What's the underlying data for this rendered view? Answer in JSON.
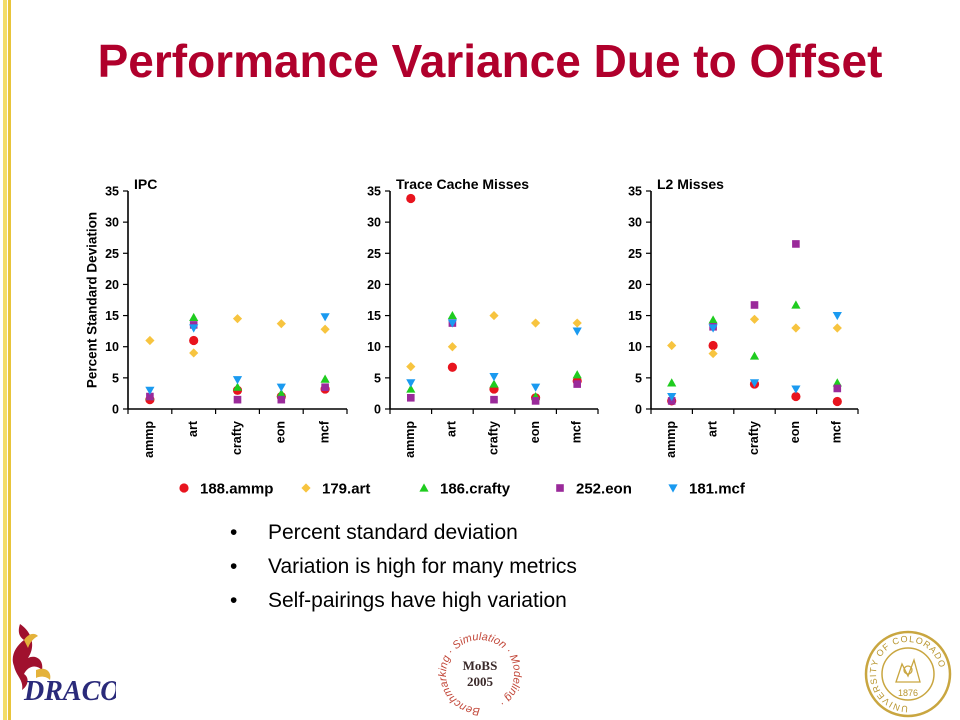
{
  "slide": {
    "title": "Performance Variance Due to Offset",
    "bullets": [
      "Percent standard deviation",
      "Variation is high for many metrics",
      "Self-pairings have high variation"
    ]
  },
  "logos": {
    "draco": "DRACO",
    "mobs_line1": "MoBS",
    "mobs_line2": "2005",
    "mobs_ring": "Benchmarking · Simulation · Modeling ·",
    "cu_ring": "UNIVERSITY OF COLORADO",
    "cu_year": "1876"
  },
  "colors": {
    "title": "#b0002c",
    "188.ammp": "#e8141e",
    "179.art": "#f7c43f",
    "186.crafty": "#1fcc1f",
    "252.eon": "#9a2a9a",
    "181.mcf": "#1a9af0"
  },
  "chart_data": [
    {
      "type": "scatter",
      "title": "IPC",
      "ylabel": "Percent Standard Deviation",
      "categories": [
        "ammp",
        "art",
        "crafty",
        "eon",
        "mcf"
      ],
      "ylim": [
        0,
        35
      ],
      "yticks": [
        0,
        5,
        10,
        15,
        20,
        25,
        30,
        35
      ],
      "series": [
        {
          "name": "188.ammp",
          "marker": "circle",
          "values": [
            1.5,
            11,
            3,
            2,
            3.2
          ]
        },
        {
          "name": "179.art",
          "marker": "diamond",
          "values": [
            11,
            9,
            14.5,
            13.7,
            12.8
          ]
        },
        {
          "name": "186.crafty",
          "marker": "triangle-up",
          "values": [
            2,
            14.7,
            3.5,
            2.5,
            4.8
          ]
        },
        {
          "name": "252.eon",
          "marker": "square",
          "values": [
            2,
            13.5,
            1.5,
            1.5,
            3.5
          ]
        },
        {
          "name": "181.mcf",
          "marker": "triangle-down",
          "values": [
            3,
            13,
            4.7,
            3.5,
            14.8
          ]
        }
      ]
    },
    {
      "type": "scatter",
      "title": "Trace Cache Misses",
      "categories": [
        "ammp",
        "art",
        "crafty",
        "eon",
        "mcf"
      ],
      "ylim": [
        0,
        35
      ],
      "yticks": [
        0,
        5,
        10,
        15,
        20,
        25,
        30,
        35
      ],
      "series": [
        {
          "name": "188.ammp",
          "marker": "circle",
          "values": [
            33.8,
            6.7,
            3.2,
            1.8,
            4.5
          ]
        },
        {
          "name": "179.art",
          "marker": "diamond",
          "values": [
            6.8,
            10,
            15,
            13.8,
            13.8
          ]
        },
        {
          "name": "186.crafty",
          "marker": "triangle-up",
          "values": [
            3.2,
            15,
            4,
            2,
            5.5
          ]
        },
        {
          "name": "252.eon",
          "marker": "square",
          "values": [
            1.8,
            13.8,
            1.5,
            1.3,
            4
          ]
        },
        {
          "name": "181.mcf",
          "marker": "triangle-down",
          "values": [
            4.2,
            13.8,
            5.2,
            3.5,
            12.5
          ]
        }
      ]
    },
    {
      "type": "scatter",
      "title": "L2 Misses",
      "categories": [
        "ammp",
        "art",
        "crafty",
        "eon",
        "mcf"
      ],
      "ylim": [
        0,
        35
      ],
      "yticks": [
        0,
        5,
        10,
        15,
        20,
        25,
        30,
        35
      ],
      "series": [
        {
          "name": "188.ammp",
          "marker": "circle",
          "values": [
            1.3,
            10.2,
            4,
            2,
            1.2
          ]
        },
        {
          "name": "179.art",
          "marker": "diamond",
          "values": [
            10.2,
            8.9,
            14.4,
            13,
            13
          ]
        },
        {
          "name": "186.crafty",
          "marker": "triangle-up",
          "values": [
            4.2,
            14.3,
            8.5,
            16.7,
            4.2
          ]
        },
        {
          "name": "252.eon",
          "marker": "square",
          "values": [
            1.3,
            13.2,
            16.7,
            26.5,
            3.3
          ]
        },
        {
          "name": "181.mcf",
          "marker": "triangle-down",
          "values": [
            2,
            13,
            4.2,
            3.2,
            15
          ]
        }
      ]
    }
  ]
}
